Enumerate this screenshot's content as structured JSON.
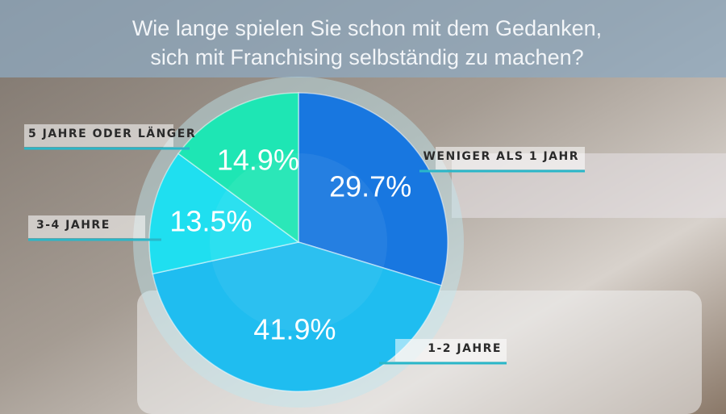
{
  "chart_data": {
    "type": "pie",
    "title": [
      "Wie lange spielen Sie schon mit dem Gedanken,",
      "sich mit Franchising selbständig zu machen?"
    ],
    "categories": [
      "WENIGER ALS 1 JAHR",
      "1-2 JAHRE",
      "3-4 JAHRE",
      "5 JAHRE ODER LÄNGER"
    ],
    "values": [
      29.7,
      41.9,
      13.5,
      14.9
    ],
    "value_labels": [
      "29.7%",
      "41.9%",
      "13.5%",
      "14.9%"
    ],
    "colors": [
      "#1877e0",
      "#1fbdf0",
      "#1fdff0",
      "#1ee6b4"
    ]
  }
}
